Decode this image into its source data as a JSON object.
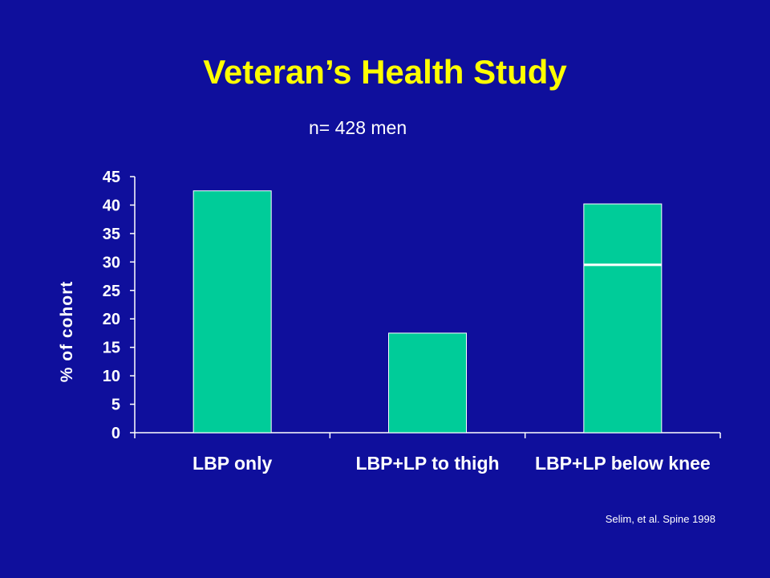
{
  "slide": {
    "title": "Veteran’s Health Study",
    "subtitle": "n= 428 men",
    "citation": "Selim, et al. Spine 1998"
  },
  "colors": {
    "background": "#0f0f9c",
    "title": "#ffff00",
    "bar": "#00cc99",
    "text": "#ffffff"
  },
  "chart_data": {
    "type": "bar",
    "title": "",
    "xlabel": "",
    "ylabel": "% of cohort",
    "categories": [
      "LBP only",
      "LBP+LP to thigh",
      "LBP+LP below knee"
    ],
    "values": [
      42.5,
      17.5,
      40.2
    ],
    "segment_marks": [
      null,
      null,
      29.5
    ],
    "ylim": [
      0,
      45
    ],
    "yticks": [
      "0",
      "5",
      "10",
      "15",
      "20",
      "25",
      "30",
      "35",
      "40",
      "45"
    ],
    "grid": false,
    "legend": "none"
  }
}
